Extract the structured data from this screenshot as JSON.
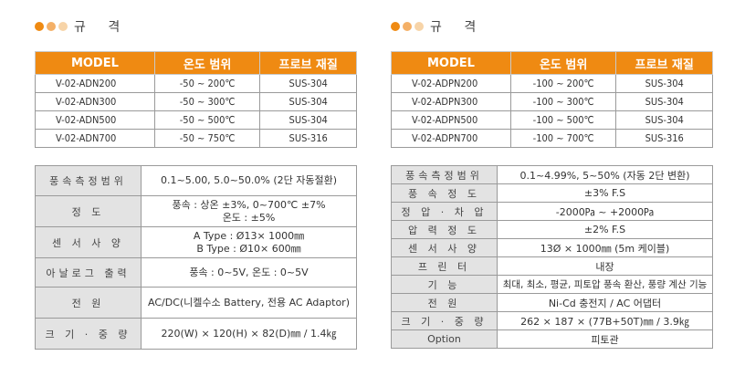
{
  "left": {
    "heading": "규 격",
    "spec_table": {
      "headers": [
        "MODEL",
        "온도 범위",
        "프로브 재질"
      ],
      "rows": [
        [
          "V-02-ADN200",
          "-50 ~ 200℃",
          "SUS-304"
        ],
        [
          "V-02-ADN300",
          "-50 ~ 300℃",
          "SUS-304"
        ],
        [
          "V-02-ADN500",
          "-50 ~ 500℃",
          "SUS-304"
        ],
        [
          "V-02-ADN700",
          "-50 ~ 750℃",
          "SUS-316"
        ]
      ]
    },
    "detail_table": [
      {
        "label": "풍속측정범위",
        "value": [
          "0.1~5.00, 5.0~50.0% (2단 자동절환)"
        ]
      },
      {
        "label": "정 도",
        "value": [
          "풍속 : 상온 ±3%, 0~700℃ ±7%",
          "온도 : ±5%"
        ]
      },
      {
        "label": "센 서 사 양",
        "value": [
          "A Type : Ø13× 1000㎜",
          "B Type : Ø10× 600㎜"
        ]
      },
      {
        "label": "아날로그 출력",
        "value": [
          "풍속 : 0~5V, 온도 : 0~5V"
        ]
      },
      {
        "label": "전 원",
        "value": [
          "AC/DC(니켈수소 Battery, 전용 AC Adaptor)"
        ]
      },
      {
        "label": "크 기 · 중 량",
        "value": [
          "220(W) × 120(H) × 82(D)㎜ / 1.4㎏"
        ]
      }
    ]
  },
  "right": {
    "heading": "규 격",
    "spec_table": {
      "headers": [
        "MODEL",
        "온도 범위",
        "프로브 재질"
      ],
      "rows": [
        [
          "V-02-ADPN200",
          "-100 ~ 200℃",
          "SUS-304"
        ],
        [
          "V-02-ADPN300",
          "-100 ~ 300℃",
          "SUS-304"
        ],
        [
          "V-02-ADPN500",
          "-100 ~ 500℃",
          "SUS-304"
        ],
        [
          "V-02-ADPN700",
          "-100 ~ 700℃",
          "SUS-316"
        ]
      ]
    },
    "detail_table": [
      {
        "label": "풍속측정범위",
        "value": [
          "0.1~4.99%, 5~50% (자동 2단 변환)"
        ]
      },
      {
        "label": "풍 속 정 도",
        "value": [
          "±3% F.S"
        ]
      },
      {
        "label": "정 압 · 차 압",
        "value": [
          "-2000㎩ ~ +2000㎩"
        ]
      },
      {
        "label": "압 력 정 도",
        "value": [
          "±2% F.S"
        ]
      },
      {
        "label": "센 서 사 양",
        "value": [
          "13Ø × 1000㎜ (5m 케이블)"
        ]
      },
      {
        "label": "프 린 터",
        "value": [
          "내장"
        ]
      },
      {
        "label": "기 능",
        "value": [
          "최대, 최소, 평균, 피토압 풍속 환산, 풍량 계산 기능"
        ]
      },
      {
        "label": "전 원",
        "value": [
          "Ni-Cd 충전지 / AC 어댑터"
        ]
      },
      {
        "label": "크 기 · 중 량",
        "value": [
          "262 × 187 × (77B+50T)㎜ / 3.9㎏"
        ]
      },
      {
        "label": "Option",
        "value": [
          "피토관"
        ]
      }
    ]
  },
  "colors": {
    "accent": "#ef8a12",
    "label_bg": "#e3e3e3",
    "border": "#9a9a9a"
  }
}
